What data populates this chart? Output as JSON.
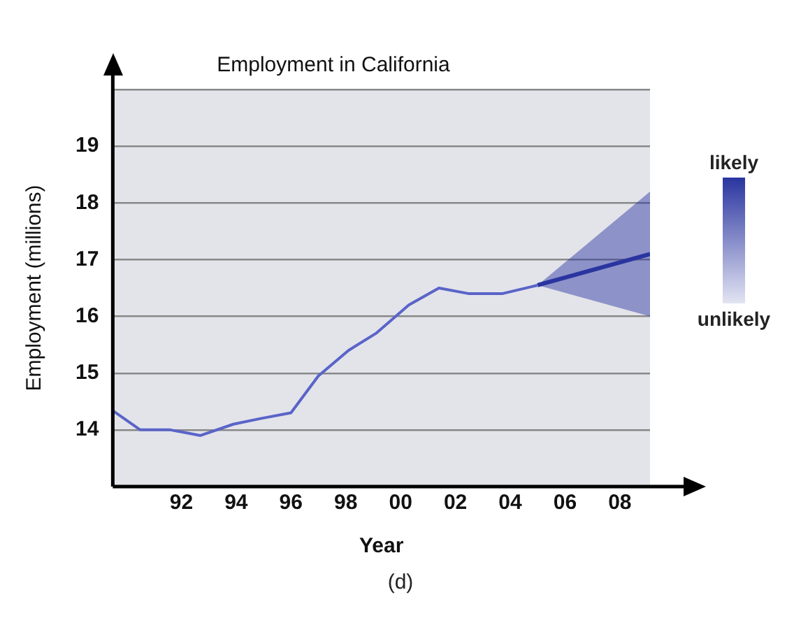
{
  "chart_data": {
    "type": "line",
    "title": "Employment in California",
    "xlabel": "Year",
    "ylabel": "Employment (millions)",
    "series": [
      {
        "color": "#5a64c8",
        "x": [
          1989.5,
          1990.5,
          1991.6,
          1992.7,
          1993.9,
          1994.9,
          1996.0,
          1997.0,
          1998.1,
          1999.1,
          2000.3,
          2001.4,
          2002.5,
          2003.7,
          2005.0
        ],
        "values": [
          14.34,
          14.0,
          14.0,
          13.9,
          14.1,
          14.2,
          14.3,
          14.95,
          15.4,
          15.7,
          16.2,
          16.5,
          16.4,
          16.4,
          16.55
        ]
      },
      {
        "color": "#2a35a0",
        "x": [
          2005.0,
          2009.1
        ],
        "values": [
          16.55,
          17.1
        ],
        "lower": [
          16.55,
          16.0
        ],
        "upper": [
          16.55,
          18.2
        ]
      }
    ],
    "xlim": [
      1989.5,
      2009.1
    ],
    "xticks": [
      {
        "value": 1992,
        "label": "92"
      },
      {
        "value": 1994,
        "label": "94"
      },
      {
        "value": 1996,
        "label": "96"
      },
      {
        "value": 1998,
        "label": "98"
      },
      {
        "value": 2000,
        "label": "00"
      },
      {
        "value": 2002,
        "label": "02"
      },
      {
        "value": 2004,
        "label": "04"
      },
      {
        "value": 2006,
        "label": "06"
      },
      {
        "value": 2008,
        "label": "08"
      }
    ],
    "ylim": [
      13,
      20
    ],
    "yticks": [
      14,
      15,
      16,
      17,
      18,
      19,
      {
        "value": 20,
        "label": null
      }
    ],
    "grid": "y",
    "annotations": [
      "likely",
      "unlikely",
      "(d)"
    ]
  }
}
